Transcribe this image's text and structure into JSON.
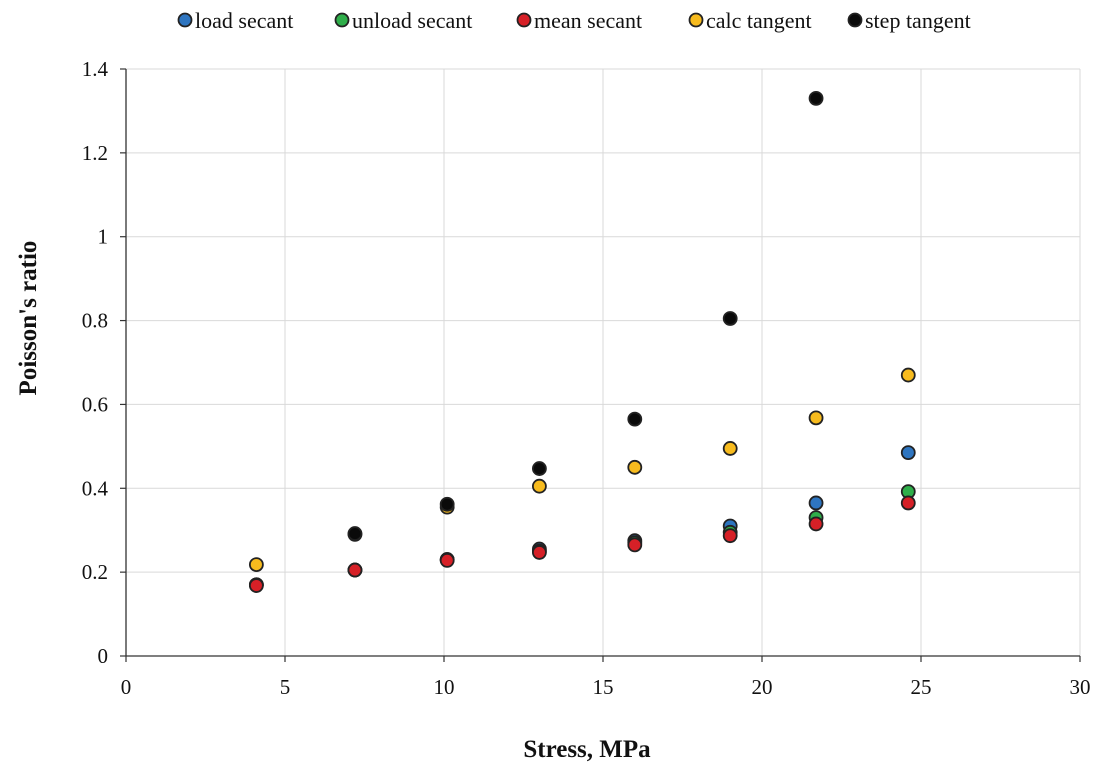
{
  "chart_data": {
    "type": "scatter",
    "xlabel": "Stress, MPa",
    "ylabel": "Poisson's ratio",
    "xlim": [
      0,
      30
    ],
    "ylim": [
      0,
      1.4
    ],
    "x_ticks": [
      0,
      5,
      10,
      15,
      20,
      25,
      30
    ],
    "y_ticks": [
      0,
      0.2,
      0.4,
      0.6,
      0.8,
      1,
      1.2,
      1.4
    ],
    "x_tick_labels": [
      "0",
      "5",
      "10",
      "15",
      "20",
      "25",
      "30"
    ],
    "y_tick_labels": [
      "0",
      "0.2",
      "0.4",
      "0.6",
      "0.8",
      "1",
      "1.2",
      "1.4"
    ],
    "grid": true,
    "legend_position": "top",
    "series": [
      {
        "name": "load secant",
        "color": "#2e75c0",
        "points": [
          [
            4.1,
            0.17
          ],
          [
            7.2,
            0.205
          ],
          [
            10.1,
            0.23
          ],
          [
            13.0,
            0.255
          ],
          [
            16.0,
            0.275
          ],
          [
            19.0,
            0.31
          ],
          [
            21.7,
            0.365
          ],
          [
            24.6,
            0.485
          ]
        ]
      },
      {
        "name": "unload secant",
        "color": "#2fae4a",
        "points": [
          [
            4.1,
            0.17
          ],
          [
            7.2,
            0.205
          ],
          [
            10.1,
            0.23
          ],
          [
            13.0,
            0.25
          ],
          [
            16.0,
            0.27
          ],
          [
            19.0,
            0.295
          ],
          [
            21.7,
            0.33
          ],
          [
            24.6,
            0.392
          ]
        ]
      },
      {
        "name": "mean secant",
        "color": "#d62027",
        "points": [
          [
            4.1,
            0.168
          ],
          [
            7.2,
            0.205
          ],
          [
            10.1,
            0.228
          ],
          [
            13.0,
            0.247
          ],
          [
            16.0,
            0.265
          ],
          [
            19.0,
            0.287
          ],
          [
            21.7,
            0.315
          ],
          [
            24.6,
            0.365
          ]
        ]
      },
      {
        "name": "calc tangent",
        "color": "#f7bb1e",
        "points": [
          [
            4.1,
            0.218
          ],
          [
            7.2,
            0.29
          ],
          [
            10.1,
            0.355
          ],
          [
            13.0,
            0.405
          ],
          [
            16.0,
            0.45
          ],
          [
            19.0,
            0.495
          ],
          [
            21.7,
            0.568
          ],
          [
            24.6,
            0.67
          ]
        ]
      },
      {
        "name": "step tangent",
        "color": "#0a0a0a",
        "points": [
          [
            7.2,
            0.292
          ],
          [
            10.1,
            0.362
          ],
          [
            13.0,
            0.447
          ],
          [
            16.0,
            0.565
          ],
          [
            19.0,
            0.805
          ],
          [
            21.7,
            1.33
          ]
        ]
      }
    ]
  }
}
